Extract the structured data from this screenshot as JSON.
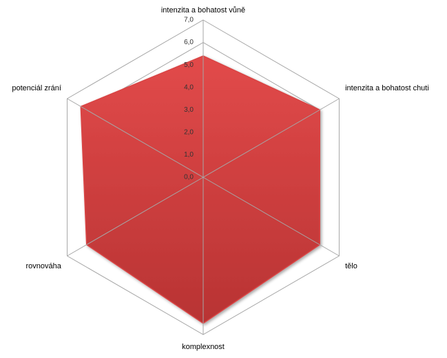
{
  "chart_data": {
    "type": "radar",
    "categories": [
      "intenzita a bohatost vůně",
      "intenzita a bohatost chuti",
      "tělo",
      "komplexnost",
      "rovnováha",
      "potenciál zrání"
    ],
    "series": [
      {
        "color": "#d94444",
        "values": [
          5.4,
          6.0,
          6.0,
          6.5,
          6.0,
          6.3
        ]
      }
    ],
    "ylim": [
      0,
      7
    ],
    "yticks": [
      {
        "value": 0,
        "label": "0,0"
      },
      {
        "value": 1,
        "label": "1,0"
      },
      {
        "value": 2,
        "label": "2,0"
      },
      {
        "value": 3,
        "label": "3,0"
      },
      {
        "value": 4,
        "label": "4,0"
      },
      {
        "value": 5,
        "label": "5,0"
      },
      {
        "value": 6,
        "label": "6,0"
      },
      {
        "value": 7,
        "label": "7,0"
      }
    ],
    "grid": true
  }
}
